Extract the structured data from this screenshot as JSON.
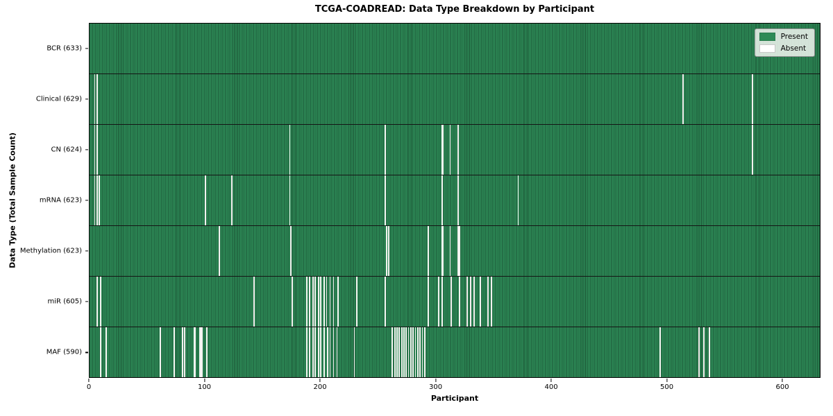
{
  "chart_data": {
    "type": "heatmap",
    "title": "TCGA-COADREAD: Data Type Breakdown by Participant",
    "xlabel": "Participant",
    "ylabel": "Data Type (Total Sample Count)",
    "xlim": [
      0,
      633
    ],
    "x_ticks": [
      0,
      100,
      200,
      300,
      400,
      500,
      600
    ],
    "n_participants": 633,
    "grid": false,
    "legend_position": "upper right",
    "legend_labels": [
      "Present",
      "Absent"
    ],
    "colors": {
      "present": "#2e8b57",
      "present_edge": "#1b5334",
      "absent": "#ffffff"
    },
    "rows": [
      {
        "data_type": "BCR",
        "label": "BCR (633)",
        "present_count": 633,
        "absent_participants": []
      },
      {
        "data_type": "Clinical",
        "label": "Clinical (629)",
        "present_count": 629,
        "absent_participants": [
          4,
          6,
          514,
          574
        ]
      },
      {
        "data_type": "CN",
        "label": "CN (624)",
        "present_count": 624,
        "absent_participants": [
          4,
          6,
          173,
          256,
          305,
          306,
          312,
          319,
          574
        ]
      },
      {
        "data_type": "mRNA",
        "label": "mRNA (623)",
        "present_count": 623,
        "absent_participants": [
          4,
          6,
          8,
          100,
          123,
          173,
          256,
          305,
          319,
          371
        ]
      },
      {
        "data_type": "Methylation",
        "label": "Methylation (623)",
        "present_count": 623,
        "absent_participants": [
          112,
          174,
          257,
          259,
          293,
          305,
          306,
          312,
          319,
          320
        ]
      },
      {
        "data_type": "miR",
        "label": "miR (605)",
        "present_count": 605,
        "absent_participants": [
          6,
          9,
          142,
          175,
          188,
          190,
          193,
          195,
          198,
          200,
          203,
          205,
          208,
          211,
          215,
          231,
          256,
          293,
          302,
          305,
          313,
          320,
          327,
          330,
          333,
          338,
          345,
          348
        ]
      },
      {
        "data_type": "MAF",
        "label": "MAF (590)",
        "present_count": 590,
        "absent_participants": [
          9,
          14,
          61,
          73,
          80,
          82,
          90,
          91,
          95,
          96,
          97,
          101,
          188,
          190,
          193,
          195,
          198,
          200,
          203,
          206,
          208,
          211,
          214,
          229,
          262,
          264,
          266,
          268,
          270,
          272,
          274,
          276,
          278,
          280,
          282,
          284,
          286,
          288,
          290,
          494,
          528,
          532,
          537
        ]
      }
    ]
  }
}
